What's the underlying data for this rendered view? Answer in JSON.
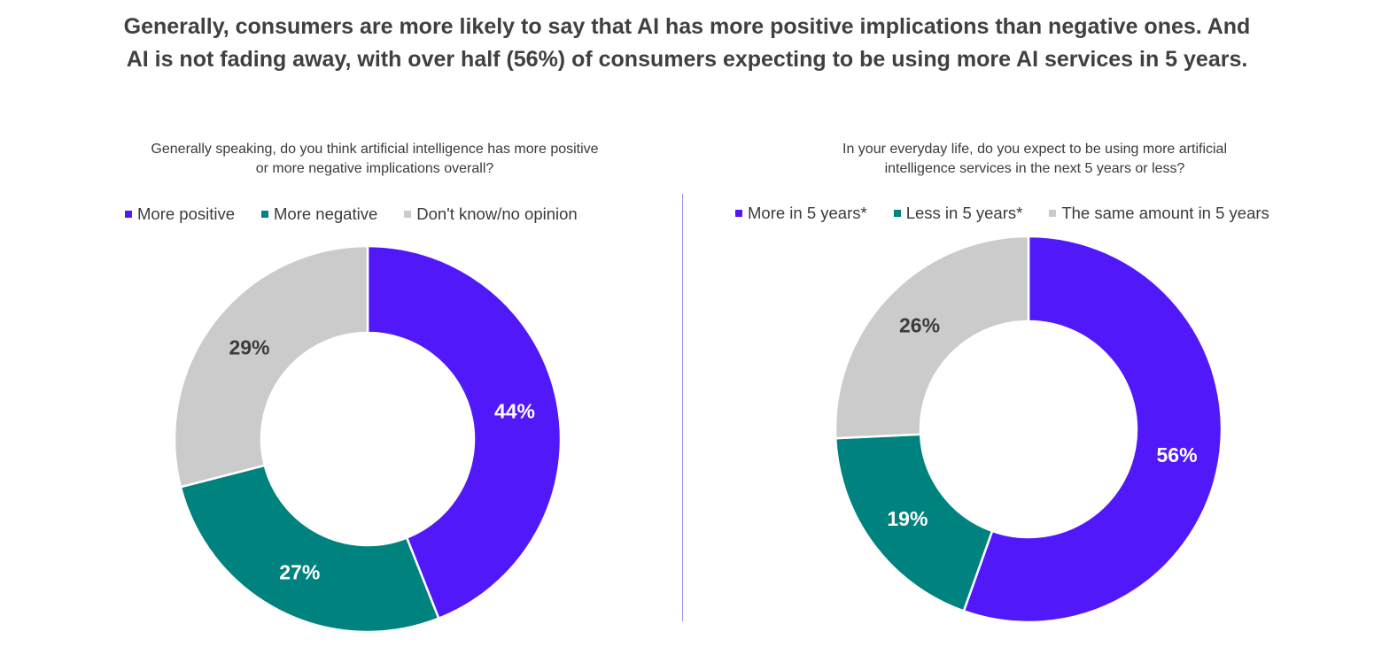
{
  "headline": {
    "line1": "Generally, consumers are more likely to say that AI has more positive implications than negative ones. And",
    "line2": "AI is not fading away, with over half (56%) of consumers expecting to be using more AI services in 5 years."
  },
  "chart_data": [
    {
      "type": "pie",
      "variant": "donut",
      "title_line1": "Generally speaking, do you think artificial intelligence has more positive",
      "title_line2": "or more negative implications overall?",
      "categories": [
        "More positive",
        "More negative",
        "Don't know/no opinion"
      ],
      "values": [
        44,
        27,
        29
      ],
      "labels": [
        "44%",
        "27%",
        "29%"
      ],
      "colors": [
        "#5118fa",
        "#00837e",
        "#cbcbcb"
      ],
      "label_colors": [
        "#ffffff",
        "#ffffff",
        "#3b3b3b"
      ],
      "legend_position": "top"
    },
    {
      "type": "pie",
      "variant": "donut",
      "title_line1": "In your everyday life, do you expect to be using more artificial",
      "title_line2": "intelligence services in the next 5 years or less?",
      "categories": [
        "More in 5 years*",
        "Less in 5 years*",
        "The same amount in 5 years"
      ],
      "values": [
        56,
        19,
        26
      ],
      "labels": [
        "56%",
        "19%",
        "26%"
      ],
      "colors": [
        "#5118fa",
        "#00837e",
        "#cbcbcb"
      ],
      "label_colors": [
        "#ffffff",
        "#ffffff",
        "#3b3b3b"
      ],
      "legend_position": "top"
    }
  ]
}
